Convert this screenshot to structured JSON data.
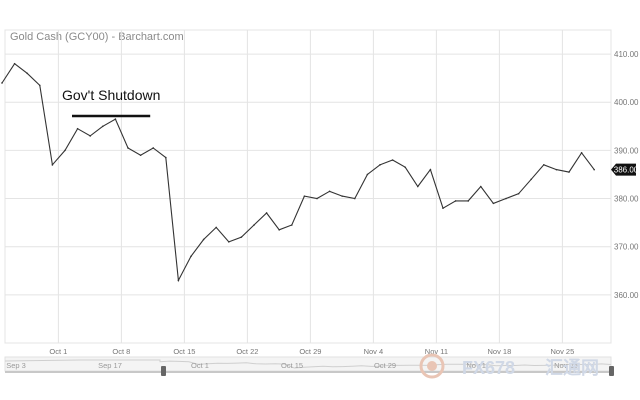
{
  "chart_data": {
    "type": "line",
    "title": "Gold Cash (GCY00) - Barchart.com",
    "xlabel": "",
    "ylabel": "",
    "ylim": [
      350,
      415
    ],
    "y_ticks": [
      {
        "label": "410.00",
        "value": 410
      },
      {
        "label": "400.00",
        "value": 400
      },
      {
        "label": "390.00",
        "value": 390
      },
      {
        "label": "380.00",
        "value": 380
      },
      {
        "label": "370.00",
        "value": 370
      },
      {
        "label": "360.00",
        "value": 360
      }
    ],
    "x_ticks": [
      {
        "label": "Oct 1",
        "index": 4
      },
      {
        "label": "Oct 8",
        "index": 9
      },
      {
        "label": "Oct 15",
        "index": 14
      },
      {
        "label": "Oct 22",
        "index": 19
      },
      {
        "label": "Oct 29",
        "index": 24
      },
      {
        "label": "Nov 4",
        "index": 29
      },
      {
        "label": "Nov 11",
        "index": 34
      },
      {
        "label": "Nov 18",
        "index": 39
      },
      {
        "label": "Nov 25",
        "index": 44
      }
    ],
    "grid": true,
    "series": [
      {
        "values": [
          404,
          408,
          406,
          403.5,
          387,
          390,
          394.5,
          393,
          395,
          396.5,
          390.5,
          389,
          390.5,
          388.5,
          363,
          368,
          371.5,
          374,
          371,
          372,
          374.5,
          377,
          373.5,
          374.5,
          380.5,
          380,
          381.5,
          380.5,
          380,
          385,
          387,
          388,
          386.5,
          382.5,
          386,
          378,
          379.5,
          379.5,
          382.5,
          379,
          380,
          381,
          384,
          387,
          386,
          385.5,
          389.5,
          386
        ]
      }
    ],
    "current_value": "386.00",
    "annotations": [
      {
        "text": "Gov't Shutdown",
        "from_index": 5,
        "to_index": 12
      }
    ],
    "navigator_labels": [
      "Sep 3",
      "Sep 17",
      "Oct 1",
      "Oct 15",
      "Oct 29",
      "Nov 11",
      "Nov 25"
    ]
  },
  "watermark": {
    "text": "FX678",
    "subtext": "汇通网"
  }
}
